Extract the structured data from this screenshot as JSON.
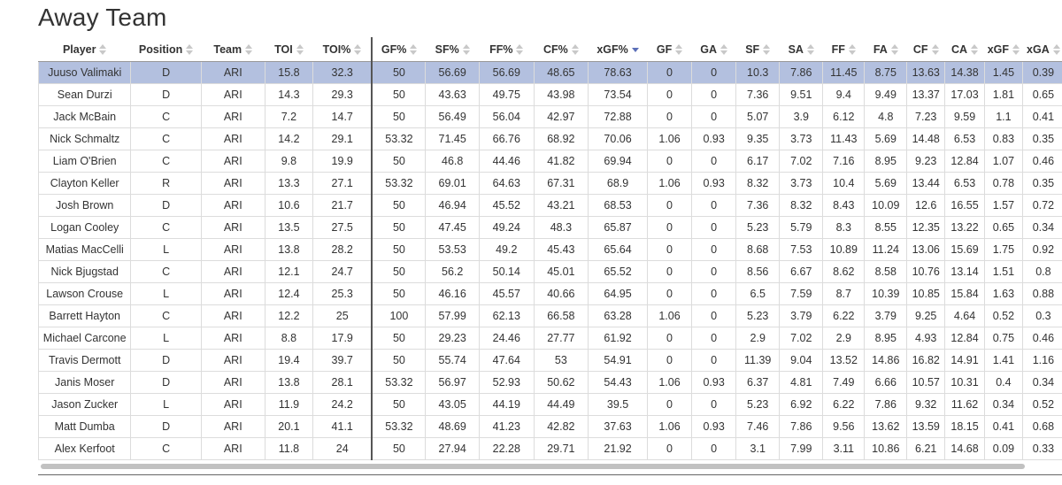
{
  "title": "Away Team",
  "sort": {
    "column": 9,
    "direction": "desc"
  },
  "columns": [
    "Player",
    "Position",
    "Team",
    "TOI",
    "TOI%",
    "GF%",
    "SF%",
    "FF%",
    "CF%",
    "xGF%",
    "GF",
    "GA",
    "SF",
    "SA",
    "FF",
    "FA",
    "CF",
    "CA",
    "xGF",
    "xGA"
  ],
  "rows": [
    [
      "Juuso Valimaki",
      "D",
      "ARI",
      "15.8",
      "32.3",
      "50",
      "56.69",
      "56.69",
      "48.65",
      "78.63",
      "0",
      "0",
      "10.3",
      "7.86",
      "11.45",
      "8.75",
      "13.63",
      "14.38",
      "1.45",
      "0.39"
    ],
    [
      "Sean Durzi",
      "D",
      "ARI",
      "14.3",
      "29.3",
      "50",
      "43.63",
      "49.75",
      "43.98",
      "73.54",
      "0",
      "0",
      "7.36",
      "9.51",
      "9.4",
      "9.49",
      "13.37",
      "17.03",
      "1.81",
      "0.65"
    ],
    [
      "Jack McBain",
      "C",
      "ARI",
      "7.2",
      "14.7",
      "50",
      "56.49",
      "56.04",
      "42.97",
      "72.88",
      "0",
      "0",
      "5.07",
      "3.9",
      "6.12",
      "4.8",
      "7.23",
      "9.59",
      "1.1",
      "0.41"
    ],
    [
      "Nick Schmaltz",
      "C",
      "ARI",
      "14.2",
      "29.1",
      "53.32",
      "71.45",
      "66.76",
      "68.92",
      "70.06",
      "1.06",
      "0.93",
      "9.35",
      "3.73",
      "11.43",
      "5.69",
      "14.48",
      "6.53",
      "0.83",
      "0.35"
    ],
    [
      "Liam O'Brien",
      "C",
      "ARI",
      "9.8",
      "19.9",
      "50",
      "46.8",
      "44.46",
      "41.82",
      "69.94",
      "0",
      "0",
      "6.17",
      "7.02",
      "7.16",
      "8.95",
      "9.23",
      "12.84",
      "1.07",
      "0.46"
    ],
    [
      "Clayton Keller",
      "R",
      "ARI",
      "13.3",
      "27.1",
      "53.32",
      "69.01",
      "64.63",
      "67.31",
      "68.9",
      "1.06",
      "0.93",
      "8.32",
      "3.73",
      "10.4",
      "5.69",
      "13.44",
      "6.53",
      "0.78",
      "0.35"
    ],
    [
      "Josh Brown",
      "D",
      "ARI",
      "10.6",
      "21.7",
      "50",
      "46.94",
      "45.52",
      "43.21",
      "68.53",
      "0",
      "0",
      "7.36",
      "8.32",
      "8.43",
      "10.09",
      "12.6",
      "16.55",
      "1.57",
      "0.72"
    ],
    [
      "Logan Cooley",
      "C",
      "ARI",
      "13.5",
      "27.5",
      "50",
      "47.45",
      "49.24",
      "48.3",
      "65.87",
      "0",
      "0",
      "5.23",
      "5.79",
      "8.3",
      "8.55",
      "12.35",
      "13.22",
      "0.65",
      "0.34"
    ],
    [
      "Matias MacCelli",
      "L",
      "ARI",
      "13.8",
      "28.2",
      "50",
      "53.53",
      "49.2",
      "45.43",
      "65.64",
      "0",
      "0",
      "8.68",
      "7.53",
      "10.89",
      "11.24",
      "13.06",
      "15.69",
      "1.75",
      "0.92"
    ],
    [
      "Nick Bjugstad",
      "C",
      "ARI",
      "12.1",
      "24.7",
      "50",
      "56.2",
      "50.14",
      "45.01",
      "65.52",
      "0",
      "0",
      "8.56",
      "6.67",
      "8.62",
      "8.58",
      "10.76",
      "13.14",
      "1.51",
      "0.8"
    ],
    [
      "Lawson Crouse",
      "L",
      "ARI",
      "12.4",
      "25.3",
      "50",
      "46.16",
      "45.57",
      "40.66",
      "64.95",
      "0",
      "0",
      "6.5",
      "7.59",
      "8.7",
      "10.39",
      "10.85",
      "15.84",
      "1.63",
      "0.88"
    ],
    [
      "Barrett Hayton",
      "C",
      "ARI",
      "12.2",
      "25",
      "100",
      "57.99",
      "62.13",
      "66.58",
      "63.28",
      "1.06",
      "0",
      "5.23",
      "3.79",
      "6.22",
      "3.79",
      "9.25",
      "4.64",
      "0.52",
      "0.3"
    ],
    [
      "Michael Carcone",
      "L",
      "ARI",
      "8.8",
      "17.9",
      "50",
      "29.23",
      "24.46",
      "27.77",
      "61.92",
      "0",
      "0",
      "2.9",
      "7.02",
      "2.9",
      "8.95",
      "4.93",
      "12.84",
      "0.75",
      "0.46"
    ],
    [
      "Travis Dermott",
      "D",
      "ARI",
      "19.4",
      "39.7",
      "50",
      "55.74",
      "47.64",
      "53",
      "54.91",
      "0",
      "0",
      "11.39",
      "9.04",
      "13.52",
      "14.86",
      "16.82",
      "14.91",
      "1.41",
      "1.16"
    ],
    [
      "Janis Moser",
      "D",
      "ARI",
      "13.8",
      "28.1",
      "53.32",
      "56.97",
      "52.93",
      "50.62",
      "54.43",
      "1.06",
      "0.93",
      "6.37",
      "4.81",
      "7.49",
      "6.66",
      "10.57",
      "10.31",
      "0.4",
      "0.34"
    ],
    [
      "Jason Zucker",
      "L",
      "ARI",
      "11.9",
      "24.2",
      "50",
      "43.05",
      "44.19",
      "44.49",
      "39.5",
      "0",
      "0",
      "5.23",
      "6.92",
      "6.22",
      "7.86",
      "9.32",
      "11.62",
      "0.34",
      "0.52"
    ],
    [
      "Matt Dumba",
      "D",
      "ARI",
      "20.1",
      "41.1",
      "53.32",
      "48.69",
      "41.23",
      "42.82",
      "37.63",
      "1.06",
      "0.93",
      "7.46",
      "7.86",
      "9.56",
      "13.62",
      "13.59",
      "18.15",
      "0.41",
      "0.68"
    ],
    [
      "Alex Kerfoot",
      "C",
      "ARI",
      "11.8",
      "24",
      "50",
      "27.94",
      "22.28",
      "29.71",
      "21.92",
      "0",
      "0",
      "3.1",
      "7.99",
      "3.11",
      "10.86",
      "6.21",
      "14.68",
      "0.09",
      "0.33"
    ]
  ]
}
